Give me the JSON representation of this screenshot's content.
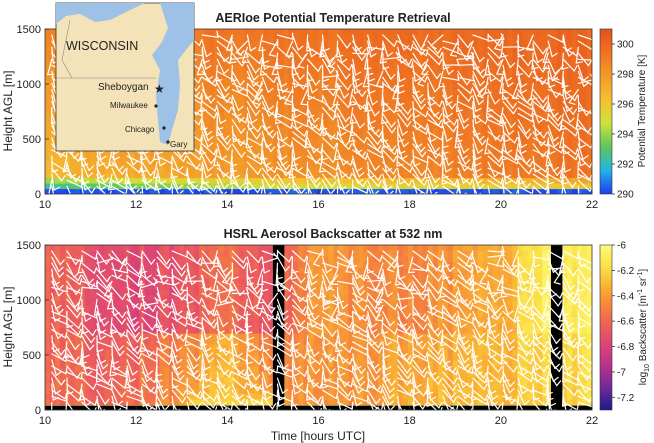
{
  "chart_data": [
    {
      "type": "heatmap",
      "title": "AERIoe Potential Temperature Retrieval",
      "xlabel": "",
      "ylabel": "Height AGL [m]",
      "x_ticks": [
        "10",
        "12",
        "14",
        "16",
        "18",
        "20",
        "22"
      ],
      "y_ticks": [
        "0",
        "500",
        "1000",
        "1500"
      ],
      "xlim": [
        10,
        22
      ],
      "ylim": [
        0,
        1500
      ],
      "colorbar": {
        "label": "Potential Temperature [K]",
        "ticks": [
          "290",
          "292",
          "294",
          "296",
          "298",
          "300"
        ],
        "range": [
          290,
          301
        ],
        "colors": [
          "#1e3cf0",
          "#21b4e8",
          "#5cc85a",
          "#cfe03c",
          "#f5c030",
          "#f39a2a",
          "#ef7322",
          "#e5501c"
        ]
      },
      "profile_time": [
        10,
        11,
        12,
        13,
        14,
        15,
        16,
        17,
        18,
        19,
        20,
        21,
        22
      ],
      "surface_value": [
        291.5,
        292,
        292.5,
        293,
        293.5,
        294,
        294,
        294,
        294.5,
        294.5,
        294.5,
        295,
        295
      ],
      "mixed_value": [
        296.5,
        297,
        297.2,
        297.4,
        297.8,
        298,
        298.2,
        298.4,
        298.6,
        298.8,
        299,
        299.2,
        299.5
      ],
      "top_value": 300.5
    },
    {
      "type": "heatmap",
      "title": "HSRL Aerosol Backscatter at 532 nm",
      "xlabel": "Time [hours UTC]",
      "ylabel": "Height AGL [m]",
      "x_ticks": [
        "10",
        "12",
        "14",
        "16",
        "18",
        "20",
        "22"
      ],
      "y_ticks": [
        "0",
        "500",
        "1000",
        "1500"
      ],
      "xlim": [
        10,
        22
      ],
      "ylim": [
        0,
        1500
      ],
      "colorbar": {
        "label_prefix": "log",
        "label_sub": "10",
        "label_main": " Backscatter [m",
        "label_sup1": "-1",
        "label_mid": " sr",
        "label_sup2": "-1",
        "label_end": "]",
        "ticks": [
          "-6",
          "-6.2",
          "-6.4",
          "-6.6",
          "-6.8",
          "-7",
          "-7.2"
        ],
        "range": [
          -7.3,
          -6
        ],
        "colors": [
          "#1a1a8c",
          "#6a2a9a",
          "#b0308e",
          "#d8407a",
          "#ec5c5c",
          "#f5823c",
          "#f9b232",
          "#fbe34a",
          "#fdfb78"
        ]
      },
      "data_gaps_hours": [
        [
          15.0,
          15.25
        ],
        [
          21.1,
          21.35
        ]
      ],
      "profile_time": [
        10,
        11,
        12,
        13,
        14,
        15,
        16,
        17,
        18,
        19,
        20,
        21,
        22
      ],
      "lower_value": [
        -6.6,
        -6.6,
        -6.55,
        -6.4,
        -6.2,
        -6.4,
        -6.45,
        -6.4,
        -6.35,
        -6.3,
        -6.3,
        -6.25,
        -6.2
      ],
      "upper_value": [
        -6.6,
        -6.7,
        -6.75,
        -6.7,
        -6.55,
        -6.7,
        -6.4,
        -6.45,
        -6.5,
        -6.4,
        -6.35,
        -6.1,
        -6.1
      ]
    }
  ],
  "inset_map": {
    "state_label": "WISCONSIN",
    "cities": [
      {
        "name": "Sheboygan",
        "marker": "star-icon"
      },
      {
        "name": "Milwaukee",
        "marker": "dot-icon"
      },
      {
        "name": "Chicago",
        "marker": "dot-icon"
      },
      {
        "name": "Gary",
        "marker": "dot-icon"
      }
    ],
    "colors": {
      "land": "#f4e3b8",
      "water": "#9ec1e8",
      "star": "#5050d8"
    }
  }
}
